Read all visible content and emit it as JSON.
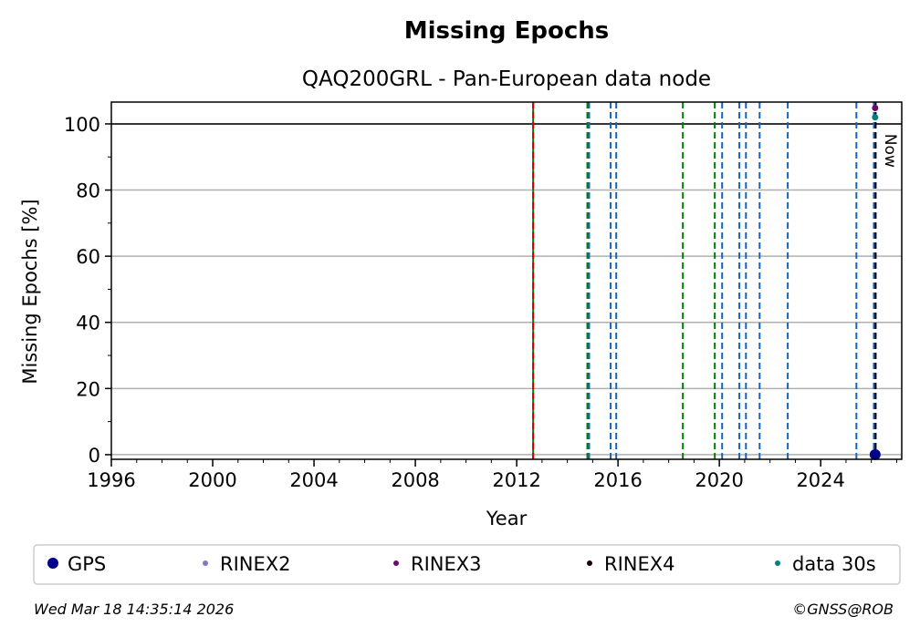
{
  "chart_data": {
    "type": "scatter",
    "title": "Missing Epochs",
    "subtitle": "QAQ200GRL - Pan-European data node",
    "xlabel": "Year",
    "ylabel": "Missing Epochs [%]",
    "xlim": [
      1996,
      2027.2
    ],
    "ylim": [
      -1.4,
      106.6
    ],
    "xticks": [
      1996,
      2000,
      2004,
      2008,
      2012,
      2016,
      2020,
      2024
    ],
    "yticks": [
      0,
      20,
      40,
      60,
      80,
      100
    ],
    "grid": "horizontal",
    "reference_line_y": 100,
    "now_label": "Now",
    "now_year": 2026.2,
    "event_lines": [
      {
        "year": 2012.65,
        "color": "#008000",
        "style": "solid"
      },
      {
        "year": 2012.65,
        "color": "#d40000",
        "style": "dashed"
      },
      {
        "year": 2014.79,
        "color": "#008000",
        "style": "dashed"
      },
      {
        "year": 2014.86,
        "color": "#1565c0",
        "style": "dashed"
      },
      {
        "year": 2015.71,
        "color": "#1565c0",
        "style": "dashed"
      },
      {
        "year": 2015.93,
        "color": "#1565c0",
        "style": "dashed"
      },
      {
        "year": 2018.56,
        "color": "#008000",
        "style": "dashed"
      },
      {
        "year": 2019.82,
        "color": "#008000",
        "style": "dashed"
      },
      {
        "year": 2020.11,
        "color": "#1565c0",
        "style": "dashed"
      },
      {
        "year": 2020.79,
        "color": "#1565c0",
        "style": "dashed"
      },
      {
        "year": 2021.05,
        "color": "#1565c0",
        "style": "dashed"
      },
      {
        "year": 2021.59,
        "color": "#1565c0",
        "style": "dashed"
      },
      {
        "year": 2022.7,
        "color": "#1565c0",
        "style": "dashed"
      },
      {
        "year": 2025.41,
        "color": "#1565c0",
        "style": "dashed"
      },
      {
        "year": 2026.1,
        "color": "#1565c0",
        "style": "dashed"
      },
      {
        "year": 2026.17,
        "color": "#000000",
        "style": "dashed"
      }
    ],
    "series": [
      {
        "name": "GPS",
        "color": "#00008b",
        "size": "large",
        "points": [
          [
            2026.15,
            0
          ]
        ]
      },
      {
        "name": "RINEX2",
        "color": "#7b7bbf",
        "size": "small",
        "points": []
      },
      {
        "name": "RINEX3",
        "color": "#6a0a6a",
        "size": "small",
        "points": [
          [
            2026.15,
            104.8
          ]
        ]
      },
      {
        "name": "RINEX4",
        "color": "#1a0010",
        "size": "small",
        "points": []
      },
      {
        "name": "data 30s",
        "color": "#008080",
        "size": "small",
        "points": [
          [
            2026.15,
            102
          ]
        ]
      }
    ],
    "legend_position": "bottom"
  },
  "footer": {
    "timestamp": "Wed Mar 18 14:35:14 2026",
    "copyright": "©GNSS@ROB"
  }
}
